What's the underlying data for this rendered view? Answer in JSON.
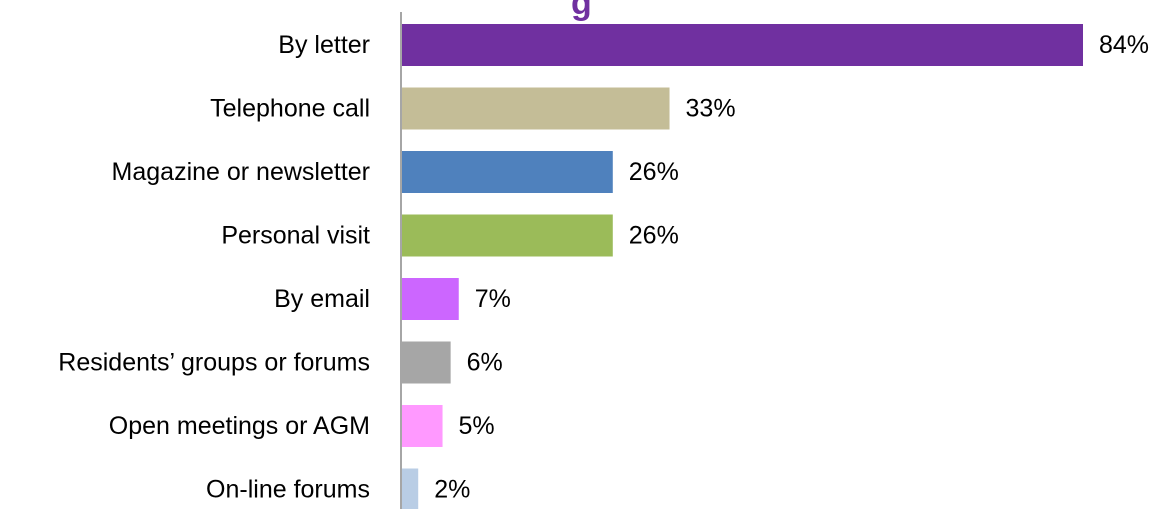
{
  "chart_data": {
    "type": "bar",
    "orientation": "horizontal",
    "title_fragment": "g",
    "categories": [
      "By letter",
      "Telephone call",
      "Magazine or newsletter",
      "Personal visit",
      "By email",
      "Residents’ groups or forums",
      "Open meetings or AGM",
      "On-line forums"
    ],
    "values": [
      84,
      33,
      26,
      26,
      7,
      6,
      5,
      2
    ],
    "value_labels": [
      "84%",
      "33%",
      "26%",
      "26%",
      "7%",
      "6%",
      "5%",
      "2%"
    ],
    "colors": [
      "#7030a0",
      "#c4bd97",
      "#4f81bd",
      "#9bbb59",
      "#cc66ff",
      "#a6a6a6",
      "#ff99ff",
      "#b9cde5"
    ],
    "unit": "%",
    "xlim": [
      0,
      84
    ],
    "grid": false,
    "legend": "none"
  }
}
